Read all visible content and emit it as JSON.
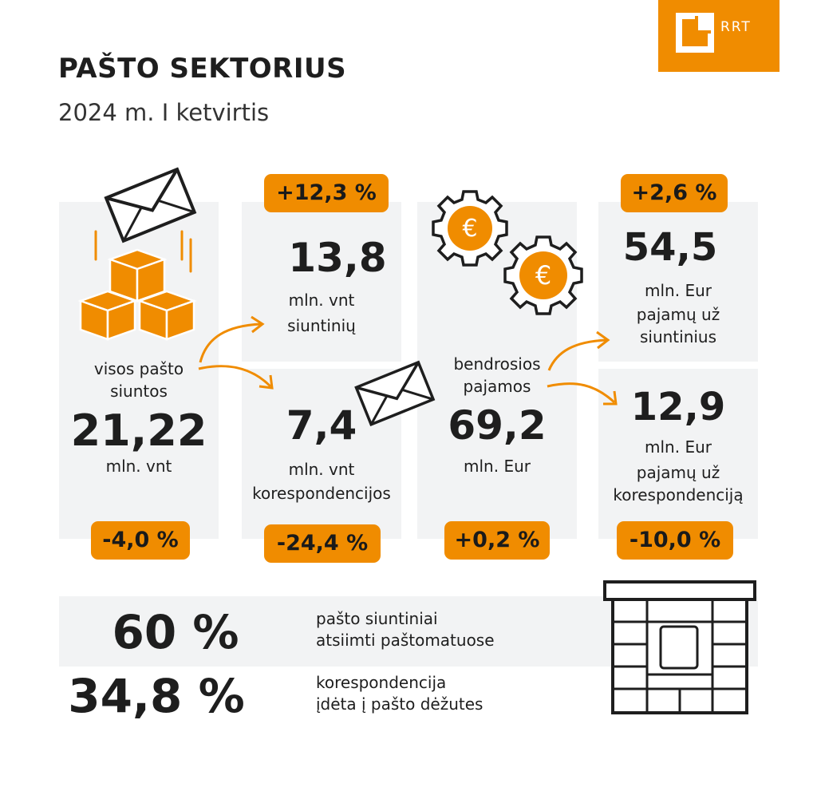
{
  "header": {
    "title": "PAŠTO SEKTORIUS",
    "subtitle": "2024 m. I ketvirtis",
    "logo_text": "RRT"
  },
  "colors": {
    "accent": "#f08c00",
    "panel": "#f2f3f4",
    "text": "#1e1e1e"
  },
  "mail_total": {
    "label": "visos pašto siuntos",
    "value": "21,22",
    "unit": "mln. vnt",
    "change": "-4,0 %",
    "icons": [
      "envelope-icon",
      "stacked-boxes-icon"
    ]
  },
  "parcels": {
    "change": "+12,3 %",
    "value": "13,8",
    "unit": "mln. vnt",
    "label": "siuntinių"
  },
  "correspondence": {
    "value": "7,4",
    "unit": "mln. vnt",
    "label": "korespondencijos",
    "change": "-24,4 %"
  },
  "revenue_total": {
    "label": "bendrosios pajamos",
    "value": "69,2",
    "unit": "mln. Eur",
    "change": "+0,2 %",
    "icons": [
      "euro-gear-icon",
      "euro-gear-icon"
    ]
  },
  "revenue_parcels": {
    "change": "+2,6 %",
    "value": "54,5",
    "unit": "mln. Eur",
    "label": "pajamų už siuntinius"
  },
  "revenue_correspondence": {
    "value": "12,9",
    "unit": "mln. Eur",
    "label": "pajamų už korespondenciją",
    "change": "-10,0 %"
  },
  "bottom": {
    "stat1": {
      "value": "60 %",
      "line1": "pašto siuntiniai",
      "line2": "atsiimti paštomatuose"
    },
    "stat2": {
      "value": "34,8 %",
      "line1": "korespondencija",
      "line2": "įdėta į pašto dėžutes"
    },
    "icon": "parcel-locker-icon"
  }
}
